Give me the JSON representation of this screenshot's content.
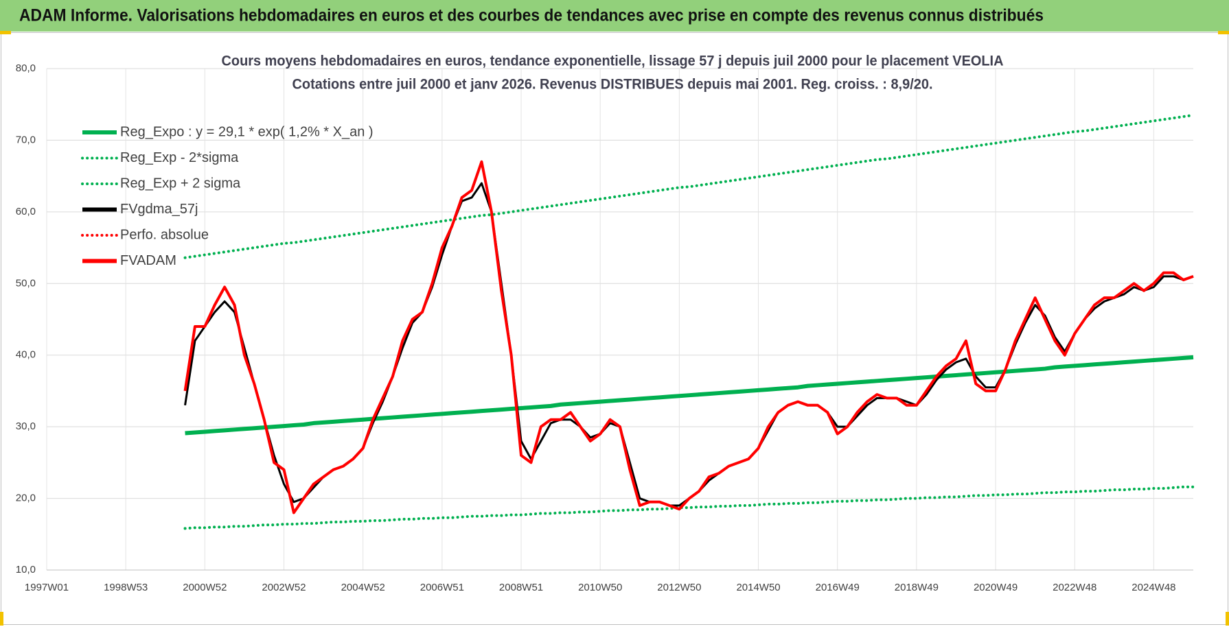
{
  "header": "ADAM Informe. Valorisations hebdomadaires en euros et des courbes de tendances avec prise en compte des revenus connus distribués",
  "chart_data": {
    "type": "line",
    "title": "Cours moyens hebdomadaires en euros, tendance exponentielle, lissage 57 j depuis juil 2000 pour le placement VEOLIA",
    "subtitle": "Cotations entre juil 2000 et janv 2026. Revenus DISTRIBUES depuis mai 2001. Reg. croiss. : 8,9/20.",
    "categories": [
      "1997W01",
      null,
      null,
      null,
      null,
      null,
      null,
      null,
      "1998W53",
      null,
      null,
      null,
      null,
      null,
      null,
      null,
      "2000W52",
      null,
      null,
      null,
      null,
      null,
      null,
      null,
      "2002W52",
      null,
      null,
      null,
      null,
      null,
      null,
      null,
      "2004W52",
      null,
      null,
      null,
      null,
      null,
      null,
      null,
      "2006W51",
      null,
      null,
      null,
      null,
      null,
      null,
      null,
      "2008W51",
      null,
      null,
      null,
      null,
      null,
      null,
      null,
      "2010W50",
      null,
      null,
      null,
      null,
      null,
      null,
      null,
      "2012W50",
      null,
      null,
      null,
      null,
      null,
      null,
      null,
      "2014W50",
      null,
      null,
      null,
      null,
      null,
      null,
      null,
      "2016W49",
      null,
      null,
      null,
      null,
      null,
      null,
      null,
      "2018W49",
      null,
      null,
      null,
      null,
      null,
      null,
      null,
      "2020W49",
      null,
      null,
      null,
      null,
      null,
      null,
      null,
      "2022W48",
      null,
      null,
      null,
      null,
      null,
      null,
      null,
      "2024W48",
      null,
      null,
      null,
      null
    ],
    "ylim": [
      10,
      80
    ],
    "yticks": [
      {
        "value": 10,
        "label": "10,0"
      },
      {
        "value": 20,
        "label": "20,0"
      },
      {
        "value": 30,
        "label": "30,0"
      },
      {
        "value": 40,
        "label": "40,0"
      },
      {
        "value": 50,
        "label": "50,0"
      },
      {
        "value": 60,
        "label": "60,0"
      },
      {
        "value": 70,
        "label": "70,0"
      },
      {
        "value": 80,
        "label": "80,0"
      }
    ],
    "grid": true,
    "legend": "upper left",
    "series": [
      {
        "name": "Reg_Expo : y = 29,1 * exp( 1,2% *  X_an )",
        "color": "#00b050",
        "style": "solid",
        "values": [
          null,
          null,
          null,
          null,
          null,
          null,
          null,
          null,
          null,
          null,
          null,
          null,
          null,
          null,
          29.1,
          29.2,
          29.3,
          29.4,
          29.5,
          29.6,
          29.7,
          29.8,
          29.9,
          30.0,
          30.1,
          30.2,
          30.3,
          30.5,
          30.6,
          30.7,
          30.8,
          30.9,
          31.0,
          31.1,
          31.2,
          31.3,
          31.4,
          31.5,
          31.6,
          31.7,
          31.8,
          31.9,
          32.0,
          32.1,
          32.2,
          32.3,
          32.4,
          32.5,
          32.6,
          32.7,
          32.8,
          32.9,
          33.1,
          33.2,
          33.3,
          33.4,
          33.5,
          33.6,
          33.7,
          33.8,
          33.9,
          34.0,
          34.1,
          34.2,
          34.3,
          34.4,
          34.5,
          34.6,
          34.7,
          34.8,
          34.9,
          35.0,
          35.1,
          35.2,
          35.3,
          35.4,
          35.5,
          35.7,
          35.8,
          35.9,
          36.0,
          36.1,
          36.2,
          36.3,
          36.4,
          36.5,
          36.6,
          36.7,
          36.8,
          36.9,
          37.0,
          37.1,
          37.2,
          37.3,
          37.4,
          37.5,
          37.6,
          37.7,
          37.8,
          37.9,
          38.0,
          38.1,
          38.3,
          38.4,
          38.5,
          38.6,
          38.7,
          38.8,
          38.9,
          39.0,
          39.1,
          39.2,
          39.3,
          39.4,
          39.5,
          39.6,
          39.7
        ]
      },
      {
        "name": "Reg_Exp - 2*sigma",
        "color": "#00b050",
        "style": "dotted",
        "values": [
          null,
          null,
          null,
          null,
          null,
          null,
          null,
          null,
          null,
          null,
          null,
          null,
          null,
          null,
          15.8,
          15.9,
          15.9,
          16.0,
          16.0,
          16.1,
          16.1,
          16.2,
          16.3,
          16.3,
          16.4,
          16.4,
          16.5,
          16.5,
          16.6,
          16.7,
          16.7,
          16.8,
          16.8,
          16.9,
          16.9,
          17.0,
          17.1,
          17.1,
          17.2,
          17.2,
          17.3,
          17.3,
          17.4,
          17.5,
          17.5,
          17.6,
          17.6,
          17.7,
          17.7,
          17.8,
          17.9,
          17.9,
          18.0,
          18.0,
          18.1,
          18.1,
          18.2,
          18.3,
          18.3,
          18.4,
          18.4,
          18.5,
          18.5,
          18.6,
          18.7,
          18.7,
          18.8,
          18.8,
          18.9,
          18.9,
          19.0,
          19.0,
          19.1,
          19.2,
          19.2,
          19.3,
          19.3,
          19.4,
          19.4,
          19.5,
          19.6,
          19.6,
          19.7,
          19.7,
          19.8,
          19.8,
          19.9,
          20.0,
          20.0,
          20.1,
          20.1,
          20.2,
          20.2,
          20.3,
          20.4,
          20.4,
          20.5,
          20.5,
          20.6,
          20.6,
          20.7,
          20.8,
          20.8,
          20.9,
          20.9,
          21.0,
          21.0,
          21.1,
          21.2,
          21.2,
          21.3,
          21.3,
          21.4,
          21.4,
          21.5,
          21.6,
          21.6
        ]
      },
      {
        "name": "Reg_Exp + 2 sigma",
        "color": "#00b050",
        "style": "dotted",
        "values": [
          null,
          null,
          null,
          null,
          null,
          null,
          null,
          null,
          null,
          null,
          null,
          null,
          null,
          null,
          53.6,
          53.8,
          54.0,
          54.2,
          54.4,
          54.6,
          54.8,
          55.0,
          55.2,
          55.4,
          55.6,
          55.7,
          55.9,
          56.1,
          56.3,
          56.5,
          56.7,
          56.9,
          57.1,
          57.3,
          57.5,
          57.7,
          57.9,
          58.1,
          58.3,
          58.5,
          58.7,
          58.9,
          59.1,
          59.3,
          59.5,
          59.6,
          59.8,
          60.0,
          60.2,
          60.4,
          60.6,
          60.8,
          61.0,
          61.2,
          61.4,
          61.6,
          61.8,
          62.0,
          62.2,
          62.4,
          62.6,
          62.8,
          63.0,
          63.2,
          63.4,
          63.5,
          63.7,
          63.9,
          64.1,
          64.3,
          64.5,
          64.7,
          64.9,
          65.1,
          65.3,
          65.5,
          65.7,
          65.9,
          66.1,
          66.3,
          66.5,
          66.7,
          66.9,
          67.1,
          67.3,
          67.4,
          67.6,
          67.8,
          68.0,
          68.2,
          68.4,
          68.6,
          68.8,
          69.0,
          69.2,
          69.4,
          69.6,
          69.8,
          70.0,
          70.2,
          70.4,
          70.6,
          70.8,
          71.0,
          71.2,
          71.3,
          71.5,
          71.7,
          71.9,
          72.1,
          72.3,
          72.5,
          72.7,
          72.9,
          73.1,
          73.3,
          73.5
        ]
      },
      {
        "name": "FVgdma_57j",
        "color": "#000000",
        "style": "solid",
        "values": [
          null,
          null,
          null,
          null,
          null,
          null,
          null,
          null,
          null,
          null,
          null,
          null,
          null,
          null,
          33,
          42,
          44,
          46,
          47.5,
          46,
          41,
          36,
          31,
          26,
          22,
          19.5,
          20,
          21.5,
          23,
          24,
          24.5,
          25.5,
          27,
          30.5,
          33.5,
          37,
          41,
          44.5,
          46,
          49.5,
          54,
          58,
          61.5,
          62,
          64,
          60,
          50,
          40,
          28,
          25.5,
          28,
          30.5,
          31,
          31,
          30,
          28.5,
          29,
          30.5,
          30,
          25,
          20,
          19.5,
          19.5,
          19,
          19,
          20,
          21,
          22.5,
          23.5,
          24.5,
          25,
          25.5,
          27,
          29.5,
          32,
          33,
          33.5,
          33,
          33,
          32,
          30,
          30,
          31.5,
          33,
          34,
          34,
          34,
          33.5,
          33,
          34.5,
          36.5,
          38,
          39,
          39.5,
          37,
          35.5,
          35.5,
          38,
          41.5,
          44.5,
          47,
          45.5,
          42.5,
          40.5,
          43,
          45,
          46.5,
          47.5,
          48,
          48.5,
          49.5,
          49,
          49.5,
          51,
          51,
          50.5,
          51
        ]
      },
      {
        "name": "Perfo. absolue",
        "color": "#ff0000",
        "style": "dotted",
        "values": [
          null,
          null,
          null,
          null,
          null,
          null,
          null,
          null,
          null,
          null,
          null,
          null,
          null,
          null,
          null,
          null,
          null,
          null,
          null,
          null,
          null,
          null,
          null,
          null,
          null,
          null,
          null,
          null,
          null,
          null,
          null,
          null,
          null,
          null,
          null,
          null,
          null,
          null,
          null,
          null,
          null,
          null,
          null,
          null,
          null,
          null,
          null,
          null,
          null,
          null,
          null,
          null,
          null,
          null,
          null,
          null,
          null,
          null,
          null,
          null,
          null,
          null,
          null,
          null,
          null,
          null,
          null,
          null,
          null,
          null,
          null,
          null,
          null,
          null,
          null,
          null,
          null,
          null,
          null,
          null,
          null,
          null,
          null,
          null,
          null,
          null,
          null,
          null,
          null,
          null,
          null,
          null,
          null,
          null,
          null,
          null,
          null,
          null,
          null,
          null,
          null,
          null,
          null,
          null,
          null,
          null,
          null,
          null,
          null,
          null,
          null,
          null,
          null,
          null,
          null,
          null,
          null
        ]
      },
      {
        "name": "FVADAM",
        "color": "#ff0000",
        "style": "solid",
        "values": [
          null,
          null,
          null,
          null,
          null,
          null,
          null,
          null,
          null,
          null,
          null,
          null,
          null,
          null,
          35,
          44,
          44,
          47,
          49.5,
          47,
          40,
          36,
          31,
          25,
          24,
          18,
          20,
          22,
          23,
          24,
          24.5,
          25.5,
          27,
          31,
          34,
          37,
          42,
          45,
          46,
          50,
          55,
          58,
          62,
          63,
          67,
          60,
          49,
          40,
          26,
          25,
          30,
          31,
          31,
          32,
          30,
          28,
          29,
          31,
          30,
          24,
          19,
          19.5,
          19.5,
          19,
          18.5,
          20,
          21,
          23,
          23.5,
          24.5,
          25,
          25.5,
          27,
          30,
          32,
          33,
          33.5,
          33,
          33,
          32,
          29,
          30,
          32,
          33.5,
          34.5,
          34,
          34,
          33,
          33,
          35,
          37,
          38.5,
          39.5,
          42,
          36,
          35,
          35,
          38,
          42,
          45,
          48,
          45,
          42,
          40,
          43,
          45,
          47,
          48,
          48,
          49,
          50,
          49,
          50,
          51.5,
          51.5,
          50.5,
          51
        ]
      }
    ]
  }
}
